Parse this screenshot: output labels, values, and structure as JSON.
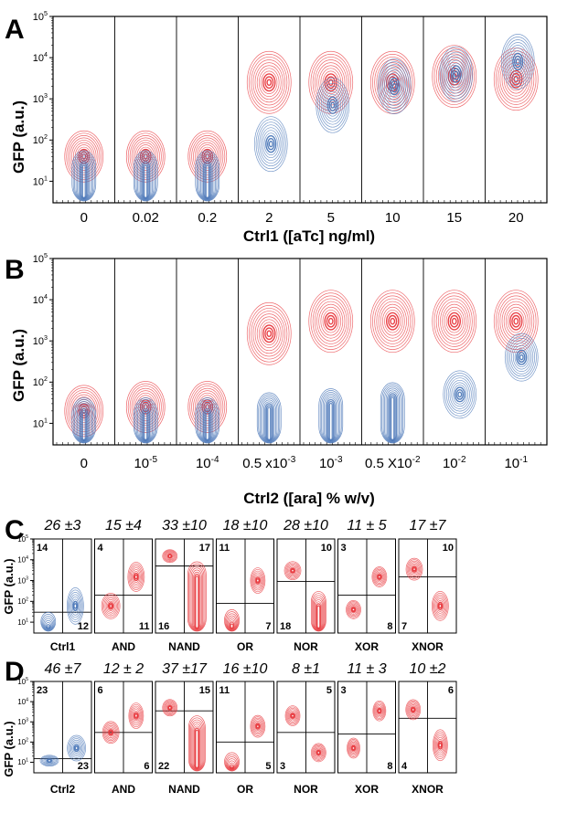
{
  "colors": {
    "red": "#e8383d",
    "blue": "#4c78b8",
    "frame": "#000000"
  },
  "panels": {
    "A": {
      "letter": "A",
      "ylabel": "GFP (a.u.)",
      "xlabel": "Ctrl1 ([aTc] ng/ml)",
      "conditions": [
        "0",
        "0.02",
        "0.2",
        "2",
        "5",
        "10",
        "15",
        "20"
      ]
    },
    "B": {
      "letter": "B",
      "ylabel": "GFP (a.u.)",
      "xlabel": "Ctrl2 ([ara] % w/v)",
      "conditions": [
        {
          "base": "0",
          "exp": ""
        },
        {
          "base": "10",
          "exp": "-5"
        },
        {
          "base": "10",
          "exp": "-4"
        },
        {
          "base": "0.5 x10",
          "exp": "-3"
        },
        {
          "base": "10",
          "exp": "-3"
        },
        {
          "base": "0.5 X10",
          "exp": "-2"
        },
        {
          "base": "10",
          "exp": "-2"
        },
        {
          "base": "10",
          "exp": "-1"
        }
      ]
    },
    "C": {
      "letter": "C",
      "ylabel": "GFP (a.u.)",
      "gates": [
        {
          "name": "Ctrl1",
          "header": "26 ±3",
          "q": [
            "14",
            "",
            "",
            "12"
          ]
        },
        {
          "name": "AND",
          "header": "15 ±4",
          "q": [
            "4",
            "",
            "",
            "11"
          ]
        },
        {
          "name": "NAND",
          "header": "33 ±10",
          "q": [
            "",
            "17",
            "16",
            ""
          ]
        },
        {
          "name": "OR",
          "header": "18 ±10",
          "q": [
            "11",
            "",
            "",
            "7"
          ]
        },
        {
          "name": "NOR",
          "header": "28 ±10",
          "q": [
            "",
            "10",
            "18",
            ""
          ]
        },
        {
          "name": "XOR",
          "header": "11 ± 5",
          "q": [
            "3",
            "",
            "",
            "8"
          ]
        },
        {
          "name": "XNOR",
          "header": "17 ±7",
          "q": [
            "",
            "10",
            "7",
            ""
          ]
        }
      ]
    },
    "D": {
      "letter": "D",
      "ylabel": "GFP (a.u.)",
      "gates": [
        {
          "name": "Ctrl2",
          "header": "46 ±7",
          "q": [
            "23",
            "",
            "",
            "23"
          ]
        },
        {
          "name": "AND",
          "header": "12 ± 2",
          "q": [
            "6",
            "",
            "",
            "6"
          ]
        },
        {
          "name": "NAND",
          "header": "37 ±17",
          "q": [
            "",
            "15",
            "22",
            ""
          ]
        },
        {
          "name": "OR",
          "header": "16 ±10",
          "q": [
            "11",
            "",
            "",
            "5"
          ]
        },
        {
          "name": "NOR",
          "header": "8 ±1",
          "q": [
            "",
            "5",
            "3",
            ""
          ]
        },
        {
          "name": "XOR",
          "header": "11 ± 3",
          "q": [
            "3",
            "",
            "",
            "8"
          ]
        },
        {
          "name": "XNOR",
          "header": "10 ±2",
          "q": [
            "",
            "6",
            "4",
            ""
          ]
        }
      ]
    }
  },
  "chart_data": [
    {
      "type": "contour",
      "panel": "A",
      "ylabel": "GFP (a.u.)",
      "xlabel": "Ctrl1 ([aTc] ng/ml)",
      "yscale": "log",
      "ylim": [
        3,
        100000
      ],
      "categories": [
        "0",
        "0.02",
        "0.2",
        "2",
        "5",
        "10",
        "15",
        "20"
      ],
      "series": [
        {
          "color": "red",
          "gfp_center": [
            40,
            40,
            40,
            2500,
            2500,
            2500,
            3500,
            3000
          ]
        },
        {
          "color": "blue",
          "gfp_center": [
            20,
            20,
            20,
            80,
            700,
            2000,
            4000,
            8000
          ]
        }
      ]
    },
    {
      "type": "contour",
      "panel": "B",
      "ylabel": "GFP (a.u.)",
      "xlabel": "Ctrl2 ([ara] % w/v)",
      "yscale": "log",
      "ylim": [
        3,
        100000
      ],
      "categories": [
        "0",
        "10^-5",
        "10^-4",
        "0.5 x10^-3",
        "10^-3",
        "0.5 X10^-2",
        "10^-2",
        "10^-1"
      ],
      "series": [
        {
          "color": "red",
          "gfp_center": [
            20,
            25,
            25,
            1500,
            3000,
            3000,
            3000,
            3000
          ]
        },
        {
          "color": "blue",
          "gfp_center": [
            15,
            15,
            15,
            20,
            25,
            35,
            50,
            400
          ]
        }
      ]
    },
    {
      "type": "contour",
      "panel": "C",
      "ylabel": "GFP (a.u.)",
      "yscale": "log",
      "ylim": [
        3,
        100000
      ],
      "gates": [
        "Ctrl1",
        "AND",
        "NAND",
        "OR",
        "NOR",
        "XOR",
        "XNOR"
      ],
      "headers": [
        "26 ±3",
        "15 ±4",
        "33 ±10",
        "18 ±10",
        "28 ±10",
        "11 ± 5",
        "17 ±7"
      ],
      "quadrant_labels": [
        [
          "14",
          "12"
        ],
        [
          "4",
          "11"
        ],
        [
          "17",
          "16"
        ],
        [
          "11",
          "7"
        ],
        [
          "10",
          "18"
        ],
        [
          "3",
          "8"
        ],
        [
          "10",
          "7"
        ]
      ]
    },
    {
      "type": "contour",
      "panel": "D",
      "ylabel": "GFP (a.u.)",
      "yscale": "log",
      "ylim": [
        3,
        100000
      ],
      "gates": [
        "Ctrl2",
        "AND",
        "NAND",
        "OR",
        "NOR",
        "XOR",
        "XNOR"
      ],
      "headers": [
        "46 ±7",
        "12 ± 2",
        "37 ±17",
        "16 ±10",
        "8 ±1",
        "11 ± 3",
        "10 ±2"
      ],
      "quadrant_labels": [
        [
          "23",
          "23"
        ],
        [
          "6",
          "6"
        ],
        [
          "15",
          "22"
        ],
        [
          "11",
          "5"
        ],
        [
          "5",
          "3"
        ],
        [
          "3",
          "8"
        ],
        [
          "6",
          "4"
        ]
      ]
    }
  ]
}
